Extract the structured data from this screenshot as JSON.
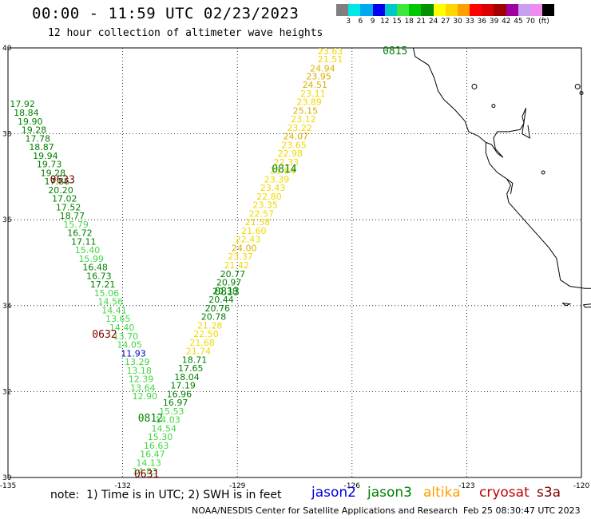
{
  "header": {
    "title": "00:00 - 11:59 UTC 02/23/2023",
    "subtitle": "12 hour collection of altimeter wave heights"
  },
  "colorbar": {
    "colors": [
      "#7f7f7f",
      "#00e8e8",
      "#00a8f0",
      "#0000ee",
      "#00c8c8",
      "#3ce83c",
      "#00c800",
      "#009000",
      "#ffff00",
      "#ffd700",
      "#ffa000",
      "#ff0000",
      "#d80000",
      "#a00000",
      "#a000a0",
      "#c8a0f0",
      "#f08cf0",
      "#000000"
    ],
    "ticks": [
      "3",
      "6",
      "9",
      "12",
      "15",
      "18",
      "21",
      "24",
      "27",
      "30",
      "33",
      "36",
      "39",
      "42",
      "45",
      "70"
    ],
    "unit": "(ft)"
  },
  "map": {
    "lat_labels": [
      "40",
      "38",
      "36",
      "34",
      "32",
      "30"
    ],
    "lon_labels": [
      "-135",
      "-132",
      "-129",
      "-126",
      "-123",
      "-120"
    ],
    "lat_range": [
      30,
      40
    ],
    "lon_range": [
      -135,
      -120
    ],
    "grid": "dotted"
  },
  "tracks": {
    "pass_labels": [
      {
        "text": "0815",
        "color": "#008000",
        "lon": -125.2,
        "lat": 39.85
      },
      {
        "text": "0814",
        "color": "#008000",
        "lon": -128.1,
        "lat": 37.1
      },
      {
        "text": "0813",
        "color": "#008000",
        "lon": -129.6,
        "lat": 34.25
      },
      {
        "text": "0812",
        "color": "#008000",
        "lon": -131.6,
        "lat": 31.3
      },
      {
        "text": "0633",
        "color": "#800000",
        "lon": -133.9,
        "lat": 36.85
      },
      {
        "text": "0632",
        "color": "#800000",
        "lon": -132.8,
        "lat": 33.25
      },
      {
        "text": "0631",
        "color": "#800000",
        "lon": -131.7,
        "lat": 30.0
      }
    ],
    "values": [
      {
        "text": "23.63",
        "color": "#f0d800",
        "lon": -126.9,
        "lat": 39.85
      },
      {
        "text": "21.51",
        "color": "#f0d800",
        "lon": -126.9,
        "lat": 39.67
      },
      {
        "text": "24.94",
        "color": "#d8b000",
        "lon": -127.1,
        "lat": 39.45
      },
      {
        "text": "23.95",
        "color": "#d8b000",
        "lon": -127.2,
        "lat": 39.27
      },
      {
        "text": "24.51",
        "color": "#d8b000",
        "lon": -127.3,
        "lat": 39.07
      },
      {
        "text": "23.11",
        "color": "#f0d800",
        "lon": -127.35,
        "lat": 38.87
      },
      {
        "text": "23.89",
        "color": "#f0d800",
        "lon": -127.45,
        "lat": 38.67
      },
      {
        "text": "25.15",
        "color": "#d8b000",
        "lon": -127.55,
        "lat": 38.47
      },
      {
        "text": "23.12",
        "color": "#f0d800",
        "lon": -127.6,
        "lat": 38.27
      },
      {
        "text": "23.22",
        "color": "#f0d800",
        "lon": -127.7,
        "lat": 38.07
      },
      {
        "text": "24.07",
        "color": "#d8b000",
        "lon": -127.8,
        "lat": 37.87
      },
      {
        "text": "23.65",
        "color": "#f0d800",
        "lon": -127.85,
        "lat": 37.67
      },
      {
        "text": "22.98",
        "color": "#f0d800",
        "lon": -127.95,
        "lat": 37.47
      },
      {
        "text": "22.33",
        "color": "#f0d800",
        "lon": -128.05,
        "lat": 37.27
      },
      {
        "text": "21.84",
        "color": "#f0d800",
        "lon": -128.15,
        "lat": 37.07
      },
      {
        "text": "23.39",
        "color": "#f0d800",
        "lon": -128.3,
        "lat": 36.87
      },
      {
        "text": "23.43",
        "color": "#f0d800",
        "lon": -128.4,
        "lat": 36.67
      },
      {
        "text": "22.80",
        "color": "#f0d800",
        "lon": -128.5,
        "lat": 36.47
      },
      {
        "text": "23.35",
        "color": "#f0d800",
        "lon": -128.6,
        "lat": 36.27
      },
      {
        "text": "22.57",
        "color": "#f0d800",
        "lon": -128.7,
        "lat": 36.07
      },
      {
        "text": "21.58",
        "color": "#f0d800",
        "lon": -128.8,
        "lat": 35.87
      },
      {
        "text": "21.60",
        "color": "#f0d800",
        "lon": -128.9,
        "lat": 35.67
      },
      {
        "text": "22.43",
        "color": "#f0d800",
        "lon": -129.05,
        "lat": 35.47
      },
      {
        "text": "24.00",
        "color": "#d8b000",
        "lon": -129.15,
        "lat": 35.27
      },
      {
        "text": "23.37",
        "color": "#f0d800",
        "lon": -129.25,
        "lat": 35.07
      },
      {
        "text": "21.42",
        "color": "#f0d800",
        "lon": -129.35,
        "lat": 34.87
      },
      {
        "text": "20.77",
        "color": "#008000",
        "lon": -129.45,
        "lat": 34.67
      },
      {
        "text": "20.97",
        "color": "#008000",
        "lon": -129.55,
        "lat": 34.47
      },
      {
        "text": "20.38",
        "color": "#008000",
        "lon": -129.65,
        "lat": 34.27
      },
      {
        "text": "20.44",
        "color": "#008000",
        "lon": -129.75,
        "lat": 34.07
      },
      {
        "text": "20.76",
        "color": "#008000",
        "lon": -129.85,
        "lat": 33.87
      },
      {
        "text": "20.78",
        "color": "#008000",
        "lon": -129.95,
        "lat": 33.67
      },
      {
        "text": "21.28",
        "color": "#f0d800",
        "lon": -130.05,
        "lat": 33.47
      },
      {
        "text": "22.50",
        "color": "#f0d800",
        "lon": -130.15,
        "lat": 33.27
      },
      {
        "text": "21.68",
        "color": "#f0d800",
        "lon": -130.25,
        "lat": 33.07
      },
      {
        "text": "21.74",
        "color": "#f0d800",
        "lon": -130.35,
        "lat": 32.87
      },
      {
        "text": "18.71",
        "color": "#008000",
        "lon": -130.45,
        "lat": 32.67
      },
      {
        "text": "17.65",
        "color": "#008000",
        "lon": -130.55,
        "lat": 32.47
      },
      {
        "text": "18.04",
        "color": "#008000",
        "lon": -130.65,
        "lat": 32.27
      },
      {
        "text": "17.19",
        "color": "#008000",
        "lon": -130.75,
        "lat": 32.07
      },
      {
        "text": "16.96",
        "color": "#008000",
        "lon": -130.85,
        "lat": 31.87
      },
      {
        "text": "16.97",
        "color": "#008000",
        "lon": -130.95,
        "lat": 31.67
      },
      {
        "text": "15.53",
        "color": "#40d840",
        "lon": -131.05,
        "lat": 31.47
      },
      {
        "text": "14.03",
        "color": "#40d840",
        "lon": -131.15,
        "lat": 31.27
      },
      {
        "text": "14.54",
        "color": "#40d840",
        "lon": -131.25,
        "lat": 31.07
      },
      {
        "text": "15.30",
        "color": "#40d840",
        "lon": -131.35,
        "lat": 30.87
      },
      {
        "text": "16.63",
        "color": "#40d840",
        "lon": -131.45,
        "lat": 30.67
      },
      {
        "text": "16.47",
        "color": "#40d840",
        "lon": -131.55,
        "lat": 30.47
      },
      {
        "text": "14.13",
        "color": "#40d840",
        "lon": -131.65,
        "lat": 30.27
      },
      {
        "text": "14.83",
        "color": "#40d840",
        "lon": -131.75,
        "lat": 30.07
      },
      {
        "text": "17.92",
        "color": "#008000",
        "lon": -134.95,
        "lat": 38.62
      },
      {
        "text": "18.84",
        "color": "#008000",
        "lon": -134.85,
        "lat": 38.42
      },
      {
        "text": "19.90",
        "color": "#008000",
        "lon": -134.75,
        "lat": 38.22
      },
      {
        "text": "19.28",
        "color": "#008000",
        "lon": -134.65,
        "lat": 38.02
      },
      {
        "text": "17.78",
        "color": "#008000",
        "lon": -134.55,
        "lat": 37.82
      },
      {
        "text": "18.87",
        "color": "#008000",
        "lon": -134.45,
        "lat": 37.62
      },
      {
        "text": "19.94",
        "color": "#008000",
        "lon": -134.35,
        "lat": 37.42
      },
      {
        "text": "19.73",
        "color": "#008000",
        "lon": -134.25,
        "lat": 37.22
      },
      {
        "text": "19.28",
        "color": "#008000",
        "lon": -134.15,
        "lat": 37.02
      },
      {
        "text": "17.86",
        "color": "#008000",
        "lon": -134.05,
        "lat": 36.82
      },
      {
        "text": "20.20",
        "color": "#008000",
        "lon": -133.95,
        "lat": 36.62
      },
      {
        "text": "17.02",
        "color": "#008000",
        "lon": -133.85,
        "lat": 36.42
      },
      {
        "text": "17.52",
        "color": "#008000",
        "lon": -133.75,
        "lat": 36.22
      },
      {
        "text": "18.77",
        "color": "#008000",
        "lon": -133.65,
        "lat": 36.02
      },
      {
        "text": "15.79",
        "color": "#40d840",
        "lon": -133.55,
        "lat": 35.82
      },
      {
        "text": "16.72",
        "color": "#008000",
        "lon": -133.45,
        "lat": 35.62
      },
      {
        "text": "17.11",
        "color": "#008000",
        "lon": -133.35,
        "lat": 35.42
      },
      {
        "text": "15.40",
        "color": "#40d840",
        "lon": -133.25,
        "lat": 35.22
      },
      {
        "text": "15.99",
        "color": "#40d840",
        "lon": -133.15,
        "lat": 35.02
      },
      {
        "text": "16.48",
        "color": "#008000",
        "lon": -133.05,
        "lat": 34.82
      },
      {
        "text": "16.73",
        "color": "#008000",
        "lon": -132.95,
        "lat": 34.62
      },
      {
        "text": "17.21",
        "color": "#008000",
        "lon": -132.85,
        "lat": 34.42
      },
      {
        "text": "15.06",
        "color": "#40d840",
        "lon": -132.75,
        "lat": 34.22
      },
      {
        "text": "14.56",
        "color": "#40d840",
        "lon": -132.65,
        "lat": 34.02
      },
      {
        "text": "14.41",
        "color": "#40d840",
        "lon": -132.55,
        "lat": 33.82
      },
      {
        "text": "13.65",
        "color": "#40d840",
        "lon": -132.45,
        "lat": 33.62
      },
      {
        "text": "14.40",
        "color": "#40d840",
        "lon": -132.35,
        "lat": 33.42
      },
      {
        "text": "13.70",
        "color": "#40d840",
        "lon": -132.25,
        "lat": 33.22
      },
      {
        "text": "14.05",
        "color": "#40d840",
        "lon": -132.15,
        "lat": 33.02
      },
      {
        "text": "11.93",
        "color": "#0000d0",
        "lon": -132.05,
        "lat": 32.82
      },
      {
        "text": "13.29",
        "color": "#40d840",
        "lon": -131.95,
        "lat": 32.62
      },
      {
        "text": "13.18",
        "color": "#40d840",
        "lon": -131.9,
        "lat": 32.42
      },
      {
        "text": "12.39",
        "color": "#40d840",
        "lon": -131.85,
        "lat": 32.22
      },
      {
        "text": "13.64",
        "color": "#40d840",
        "lon": -131.8,
        "lat": 32.02
      },
      {
        "text": "12.90",
        "color": "#40d840",
        "lon": -131.75,
        "lat": 31.82
      }
    ]
  },
  "footer": {
    "note": "note:  1) Time is in UTC; 2) SWH is in feet",
    "legend": [
      {
        "label": "jason2",
        "color": "#0000e0"
      },
      {
        "label": "jason3",
        "color": "#008000"
      },
      {
        "label": "altika",
        "color": "#ffa000"
      },
      {
        "label": "cryosat",
        "color": "#c00000"
      },
      {
        "label": "s3a",
        "color": "#800000"
      }
    ],
    "credit": "NOAA/NESDIS Center for Satellite Applications and Research",
    "timestamp": "Feb 25 08:30:47 UTC 2023"
  }
}
